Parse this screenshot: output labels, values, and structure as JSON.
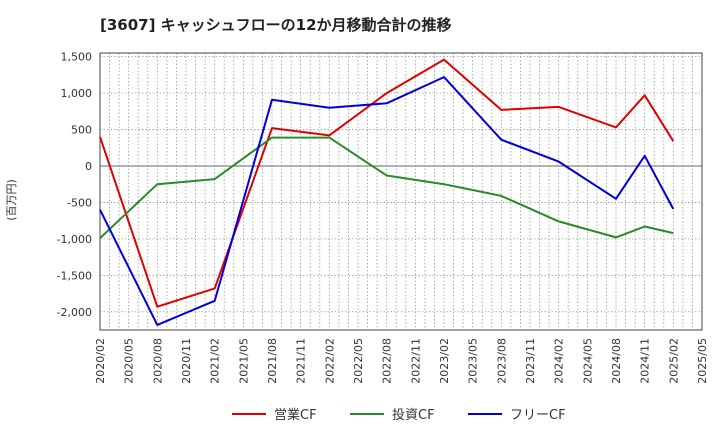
{
  "chart_data": {
    "type": "line",
    "title": "[3607]  キャッシュフローの12か月移動合計の推移",
    "ylabel": "(百万円)",
    "xlabel": "",
    "ylim": [
      -2250,
      1550
    ],
    "yticks": [
      1500,
      1000,
      500,
      0,
      -500,
      -1000,
      -1500,
      -2000
    ],
    "ytick_labels": [
      "1,500",
      "1,000",
      "500",
      "0",
      "-500",
      "-1,000",
      "-1,500",
      "-2,000"
    ],
    "xticks": [
      "2020/02",
      "2020/05",
      "2020/08",
      "2020/11",
      "2021/02",
      "2021/05",
      "2021/08",
      "2021/11",
      "2022/02",
      "2022/05",
      "2022/08",
      "2022/11",
      "2023/02",
      "2023/05",
      "2023/08",
      "2023/11",
      "2024/02",
      "2024/05",
      "2024/08",
      "2024/11",
      "2025/02",
      "2025/05"
    ],
    "grid": true,
    "legend_position": "bottom",
    "x": [
      "2020/02",
      "2020/08",
      "2021/02",
      "2021/08",
      "2022/02",
      "2022/08",
      "2023/02",
      "2023/08",
      "2024/02",
      "2024/08",
      "2024/11",
      "2025/02"
    ],
    "series": [
      {
        "name": "営業CF",
        "color": "#e00000",
        "values": [
          400,
          -1930,
          -1680,
          520,
          420,
          1000,
          1460,
          770,
          810,
          530,
          970,
          340
        ]
      },
      {
        "name": "投資CF",
        "color": "#2a8a2a",
        "values": [
          -990,
          -250,
          -180,
          390,
          390,
          -130,
          -250,
          -410,
          -760,
          -980,
          -830,
          -920
        ]
      },
      {
        "name": "フリーCF",
        "color": "#0000dd",
        "values": [
          -600,
          -2180,
          -1850,
          910,
          800,
          860,
          1220,
          360,
          60,
          -450,
          140,
          -590
        ]
      }
    ]
  }
}
